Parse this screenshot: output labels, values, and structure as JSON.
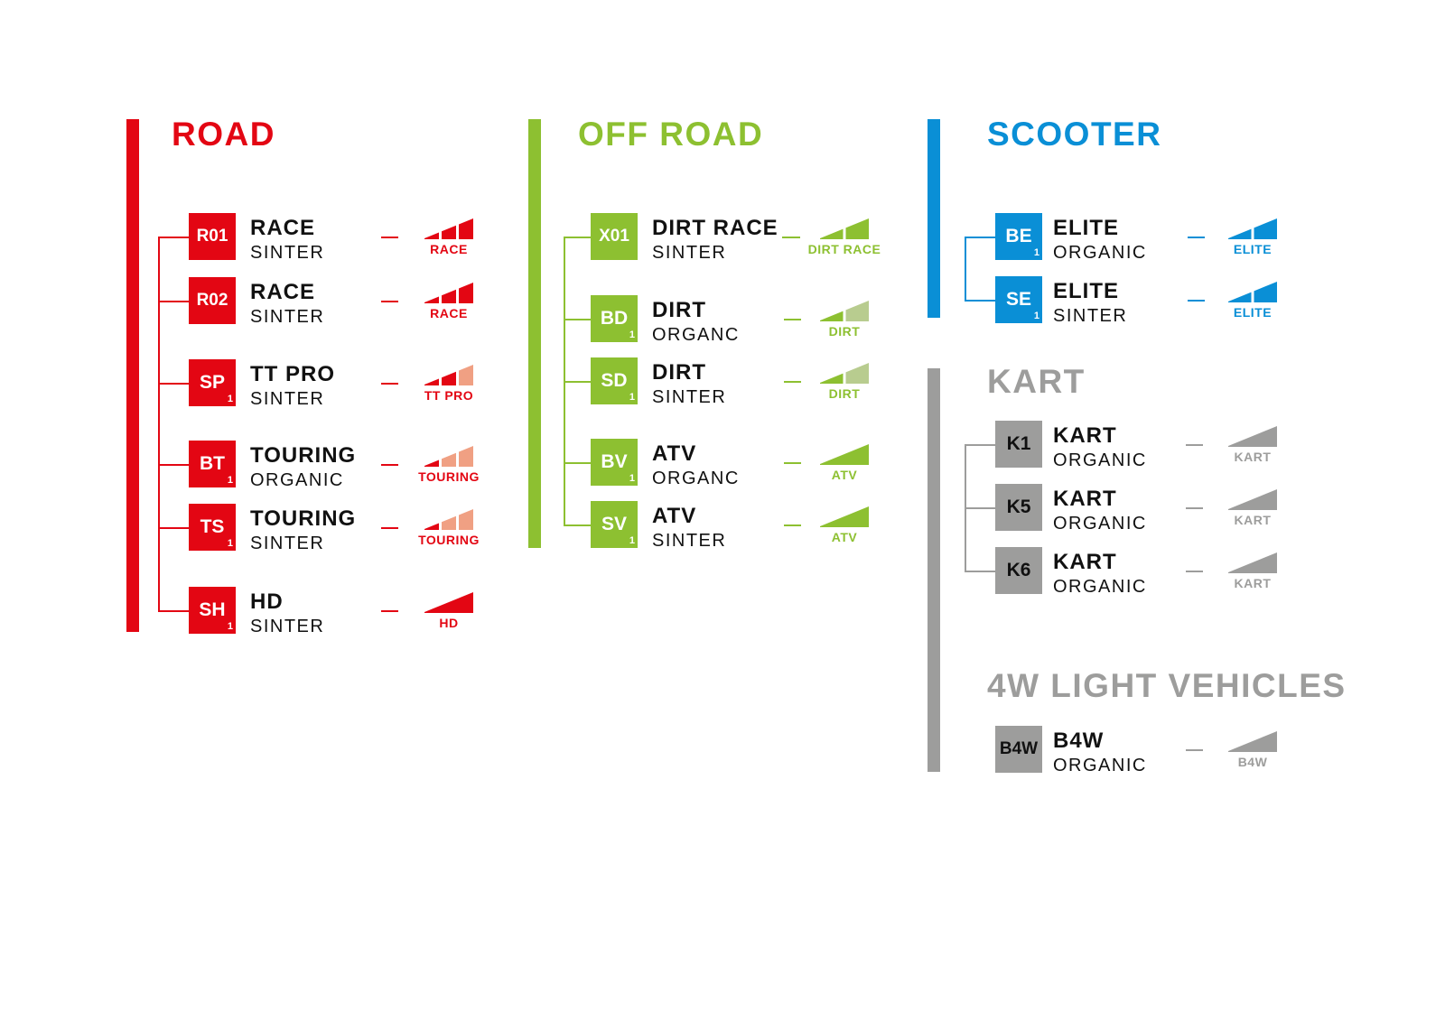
{
  "sections": [
    {
      "id": "road",
      "title": "ROAD",
      "color": "#e30613",
      "light": "#f0a083",
      "items": [
        {
          "code": "R01",
          "sub": "",
          "name": "RACE",
          "material": "SINTER",
          "icon": {
            "label": "RACE",
            "segments": 3,
            "filled": 3
          }
        },
        {
          "code": "R02",
          "sub": "",
          "name": "RACE",
          "material": "SINTER",
          "icon": {
            "label": "RACE",
            "segments": 3,
            "filled": 3
          }
        },
        {
          "code": "SP",
          "sub": "1",
          "name": "TT PRO",
          "material": "SINTER",
          "icon": {
            "label": "TT PRO",
            "segments": 3,
            "filled": 2
          }
        },
        {
          "code": "BT",
          "sub": "1",
          "name": "TOURING",
          "material": "ORGANIC",
          "icon": {
            "label": "TOURING",
            "segments": 3,
            "filled": 1
          }
        },
        {
          "code": "TS",
          "sub": "1",
          "name": "TOURING",
          "material": "SINTER",
          "icon": {
            "label": "TOURING",
            "segments": 3,
            "filled": 1
          }
        },
        {
          "code": "SH",
          "sub": "1",
          "name": "HD",
          "material": "SINTER",
          "icon": {
            "label": "HD",
            "segments": 1,
            "filled": 1
          }
        }
      ]
    },
    {
      "id": "off-road",
      "title": "OFF ROAD",
      "color": "#8dc031",
      "light": "#b8cc8f",
      "items": [
        {
          "code": "X01",
          "sub": "",
          "name": "DIRT RACE",
          "material": "SINTER",
          "icon": {
            "label": "DIRT RACE",
            "segments": 2,
            "filled": 2
          }
        },
        {
          "code": "BD",
          "sub": "1",
          "name": "DIRT",
          "material": "ORGANC",
          "icon": {
            "label": "DIRT",
            "segments": 2,
            "filled": 1
          }
        },
        {
          "code": "SD",
          "sub": "1",
          "name": "DIRT",
          "material": "SINTER",
          "icon": {
            "label": "DIRT",
            "segments": 2,
            "filled": 1
          }
        },
        {
          "code": "BV",
          "sub": "1",
          "name": "ATV",
          "material": "ORGANC",
          "icon": {
            "label": "ATV",
            "segments": 1,
            "filled": 1
          }
        },
        {
          "code": "SV",
          "sub": "1",
          "name": "ATV",
          "material": "SINTER",
          "icon": {
            "label": "ATV",
            "segments": 1,
            "filled": 1
          }
        }
      ]
    },
    {
      "id": "scooter",
      "title": "SCOOTER",
      "color": "#0a8fd6",
      "light": "#8cc8ea",
      "items": [
        {
          "code": "BE",
          "sub": "1",
          "name": "ELITE",
          "material": "ORGANIC",
          "icon": {
            "label": "ELITE",
            "segments": 2,
            "filled": 2
          }
        },
        {
          "code": "SE",
          "sub": "1",
          "name": "ELITE",
          "material": "SINTER",
          "icon": {
            "label": "ELITE",
            "segments": 2,
            "filled": 2
          }
        }
      ]
    },
    {
      "id": "kart",
      "title": "KART",
      "color": "#9d9d9c",
      "light": "#cfcfcf",
      "codeColor": "#111",
      "items": [
        {
          "code": "K1",
          "sub": "",
          "name": "KART",
          "material": "ORGANIC",
          "icon": {
            "label": "KART",
            "segments": 1,
            "filled": 1
          }
        },
        {
          "code": "K5",
          "sub": "",
          "name": "KART",
          "material": "ORGANIC",
          "icon": {
            "label": "KART",
            "segments": 1,
            "filled": 1
          }
        },
        {
          "code": "K6",
          "sub": "",
          "name": "KART",
          "material": "ORGANIC",
          "icon": {
            "label": "KART",
            "segments": 1,
            "filled": 1
          }
        }
      ]
    },
    {
      "id": "4w",
      "title": "4W LIGHT VEHICLES",
      "color": "#9d9d9c",
      "light": "#cfcfcf",
      "codeColor": "#111",
      "items": [
        {
          "code": "B4W",
          "sub": "",
          "name": "B4W",
          "material": "ORGANIC",
          "icon": {
            "label": "B4W",
            "segments": 1,
            "filled": 1
          }
        }
      ]
    }
  ]
}
